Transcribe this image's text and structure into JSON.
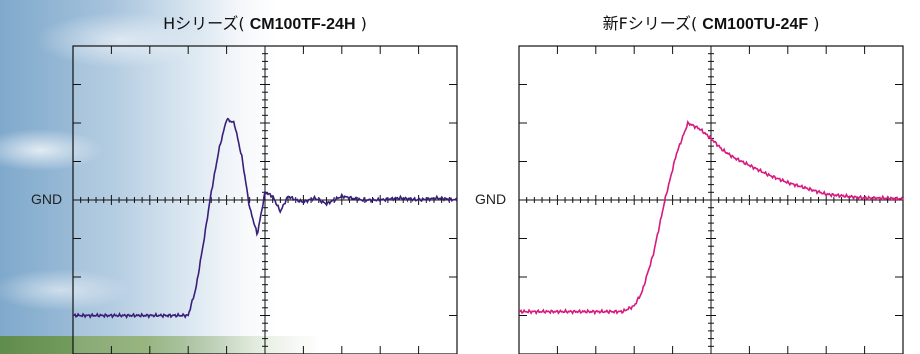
{
  "chart_data": [
    {
      "type": "line",
      "title_normal": "Hシリーズ( ",
      "title_bold": "CM100TF-24H",
      "title_end": " )",
      "gnd_label": "GND",
      "xlim": [
        0,
        10
      ],
      "ylim": [
        -4,
        4
      ],
      "grid": false,
      "series": [
        {
          "color": "#3a1f7a",
          "x": [
            0.0,
            2.0,
            3.0,
            3.2,
            3.4,
            3.6,
            3.8,
            4.0,
            4.2,
            4.4,
            4.6,
            4.8,
            5.0,
            5.2,
            5.4,
            5.6,
            5.8,
            6.0,
            6.3,
            6.6,
            7.0,
            7.5,
            8.0,
            8.5,
            9.0,
            9.5,
            10.0
          ],
          "y": [
            -3.0,
            -3.0,
            -3.0,
            -2.3,
            -1.1,
            0.2,
            1.3,
            2.1,
            2.0,
            1.1,
            -0.2,
            -0.9,
            0.2,
            0.1,
            -0.3,
            0.1,
            0.0,
            -0.05,
            0.05,
            -0.1,
            0.1,
            0.0,
            0.0,
            0.05,
            0.0,
            0.05,
            0.0
          ]
        }
      ]
    },
    {
      "type": "line",
      "title_normal": "新Fシリーズ( ",
      "title_bold": "CM100TU-24F",
      "title_end": " )",
      "gnd_label": "GND",
      "xlim": [
        0,
        10
      ],
      "ylim": [
        -4,
        4
      ],
      "grid": false,
      "series": [
        {
          "color": "#d61a7f",
          "x": [
            0.0,
            2.0,
            2.7,
            3.0,
            3.2,
            3.5,
            3.8,
            4.1,
            4.4,
            4.7,
            5.0,
            5.3,
            5.6,
            6.0,
            6.5,
            7.0,
            7.5,
            8.0,
            8.5,
            9.0,
            9.5,
            10.0
          ],
          "y": [
            -2.9,
            -2.9,
            -2.9,
            -2.75,
            -2.4,
            -1.4,
            0.0,
            1.2,
            2.0,
            1.85,
            1.6,
            1.3,
            1.1,
            0.9,
            0.65,
            0.45,
            0.3,
            0.15,
            0.1,
            0.05,
            0.05,
            0.03
          ]
        }
      ]
    }
  ]
}
